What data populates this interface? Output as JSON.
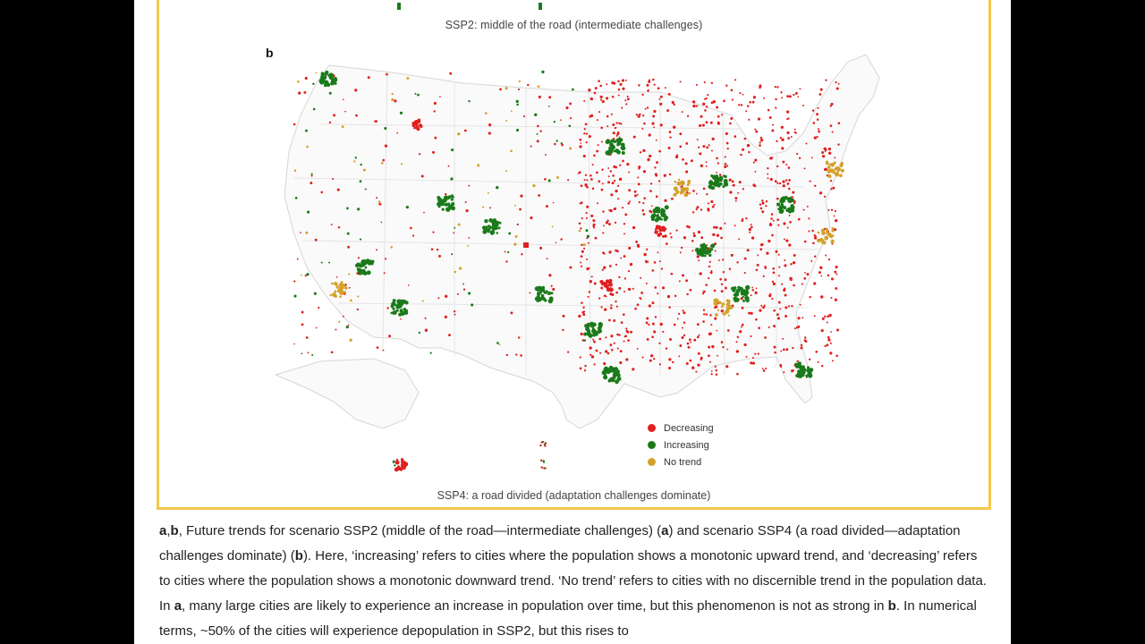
{
  "figure": {
    "caption_top": "SSP2: middle of the road (intermediate challenges)",
    "panel_label": "b",
    "caption_bottom": "SSP4: a road divided (adaptation challenges dominate)",
    "legend": [
      {
        "label": "Decreasing",
        "color": "#e0201f"
      },
      {
        "label": "Increasing",
        "color": "#1a7a1a"
      },
      {
        "label": "No trend",
        "color": "#d4a12a"
      }
    ]
  },
  "body": {
    "p1_prefix_bold": "a",
    "p1_comma": ",",
    "p1_prefix_bold2": "b",
    "p1_t1": ", Future trends for scenario SSP2 (middle of the road—intermediate challenges) (",
    "p1_b1": "a",
    "p1_t2": ") and scenario SSP4 (a road divided—adaptation challenges dominate) (",
    "p1_b2": "b",
    "p1_t3": "). Here, ‘increasing’ refers to cities where the population shows a monotonic upward trend, and ‘decreasing’ refers to cities where the population shows a monotonic downward trend. ‘No trend’ refers to cities with no discernible trend in the population data. In ",
    "p1_b3": "a",
    "p1_t4": ", many large cities are likely to experience an increase in population over time, but this phenomenon is not as strong in ",
    "p1_b4": "b",
    "p1_t5": ". In numerical terms, ~50% of the cities will experience depopulation in SSP2, but this rises to"
  }
}
